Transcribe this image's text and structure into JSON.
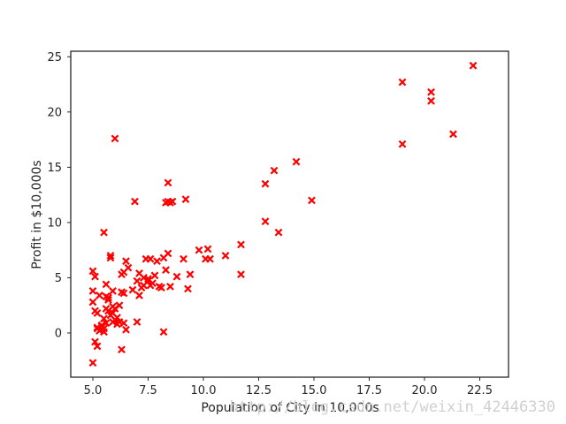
{
  "chart_data": {
    "type": "scatter",
    "title": "",
    "xlabel": "Population of City in 10,000s",
    "ylabel": "Profit in $10,000s",
    "xlim": [
      4.0,
      23.8
    ],
    "ylim": [
      -4.0,
      25.5
    ],
    "xticks": [
      5.0,
      7.5,
      10.0,
      12.5,
      15.0,
      17.5,
      20.0,
      22.5
    ],
    "xtick_labels": [
      "5.0",
      "7.5",
      "10.0",
      "12.5",
      "15.0",
      "17.5",
      "20.0",
      "22.5"
    ],
    "yticks": [
      0,
      5,
      10,
      15,
      20,
      25
    ],
    "ytick_labels": [
      "0",
      "5",
      "10",
      "15",
      "20",
      "25"
    ],
    "grid": false,
    "legend": false,
    "marker": "x",
    "color": "#ff0000",
    "x": [
      5.0,
      5.0,
      5.1,
      5.0,
      5.1,
      5.2,
      5.2,
      5.3,
      5.4,
      5.5,
      5.5,
      5.6,
      5.6,
      5.7,
      5.7,
      5.8,
      5.8,
      5.9,
      5.9,
      5.9,
      6.0,
      6.1,
      6.2,
      6.3,
      6.4,
      6.4,
      6.5,
      6.5,
      6.6,
      6.8,
      6.9,
      7.0,
      7.1,
      7.2,
      7.3,
      7.4,
      7.5,
      7.6,
      7.6,
      7.7,
      7.9,
      8.1,
      8.2,
      8.2,
      8.3,
      8.4,
      8.4,
      8.5,
      8.5,
      8.8,
      9.1,
      9.2,
      9.3,
      9.4,
      9.8,
      10.1,
      10.3,
      10.2,
      11.0,
      11.7,
      11.7,
      12.8,
      12.8,
      13.2,
      13.4,
      14.2,
      14.9,
      19.0,
      19.0,
      20.3,
      20.3,
      21.3,
      22.2,
      5.1,
      5.2,
      5.4,
      5.5,
      5.5,
      5.7,
      5.8,
      6.0,
      6.3,
      5.3,
      5.6,
      6.1,
      5.0,
      5.9,
      6.2,
      6.4,
      7.0,
      6.3,
      5.2,
      7.3,
      7.5,
      7.8,
      8.0,
      8.3,
      7.1,
      6.0,
      8.4,
      8.6,
      5.6
    ],
    "y": [
      -2.7,
      5.6,
      5.1,
      3.8,
      2.0,
      1.8,
      0.4,
      0.2,
      0.6,
      0.4,
      9.1,
      4.4,
      3.3,
      3.0,
      2.0,
      7.0,
      6.8,
      1.8,
      1.0,
      3.8,
      17.6,
      0.8,
      2.5,
      5.3,
      5.5,
      0.9,
      6.5,
      0.3,
      5.9,
      3.9,
      11.9,
      4.7,
      3.4,
      4.1,
      4.3,
      6.7,
      4.9,
      6.7,
      4.3,
      4.5,
      6.5,
      4.1,
      6.8,
      0.1,
      11.8,
      11.9,
      13.6,
      11.8,
      4.2,
      5.1,
      6.7,
      12.1,
      4.0,
      5.3,
      7.5,
      6.7,
      6.7,
      7.6,
      7.0,
      8.0,
      5.3,
      13.5,
      10.1,
      14.7,
      9.1,
      15.5,
      12.0,
      22.7,
      17.1,
      21.8,
      21.0,
      18.0,
      24.2,
      -0.8,
      -1.2,
      0.7,
      0.1,
      1.3,
      3.2,
      1.6,
      1.2,
      -1.5,
      3.4,
      0.9,
      1.4,
      2.8,
      2.4,
      1.0,
      3.6,
      1.0,
      3.7,
      0.5,
      5.0,
      4.7,
      5.2,
      4.2,
      5.7,
      5.4,
      2.2,
      7.2,
      11.9,
      2.2
    ]
  },
  "watermark": "http://blog.csdn.net/weixin_42446330"
}
